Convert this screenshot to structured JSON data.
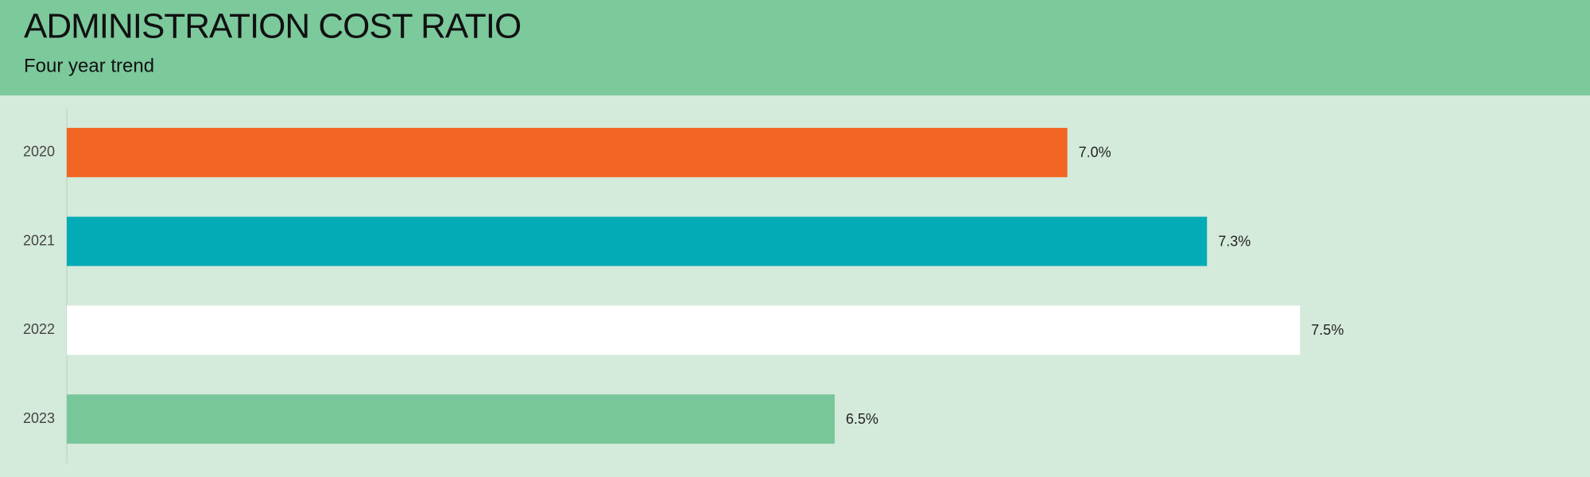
{
  "chart_data": {
    "type": "bar",
    "orientation": "horizontal",
    "title": "ADMINISTRATION COST RATIO",
    "subtitle": "Four year trend",
    "categories": [
      "2020",
      "2021",
      "2022",
      "2023"
    ],
    "values": [
      7.0,
      7.3,
      7.5,
      6.5
    ],
    "value_labels": [
      "7.0%",
      "7.3%",
      "7.5%",
      "6.5%"
    ],
    "colors": [
      "#f26522",
      "#03abb6",
      "#ffffff",
      "#78c79a"
    ],
    "xlim": [
      4.85,
      8
    ]
  }
}
